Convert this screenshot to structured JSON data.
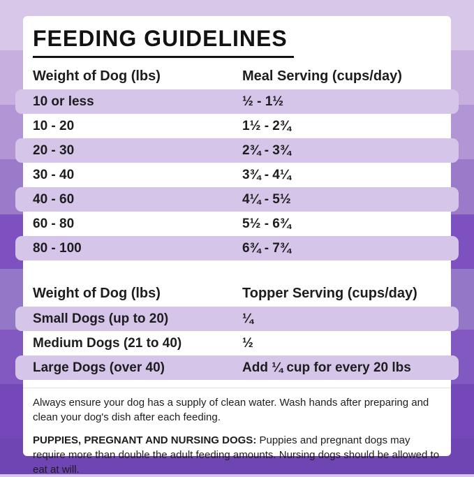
{
  "page": {
    "title": "FEEDING GUIDELINES"
  },
  "meal_table": {
    "col1_header": "Weight of Dog (lbs)",
    "col2_header": "Meal Serving (cups/day)",
    "rows": [
      {
        "weight": "10 or less",
        "serving": "½ - 1½"
      },
      {
        "weight": "10 - 20",
        "serving": "1½ - 2¾"
      },
      {
        "weight": "20 - 30",
        "serving": "2¾ - 3¾"
      },
      {
        "weight": "30 - 40",
        "serving": "3¾ - 4¼"
      },
      {
        "weight": "40 - 60",
        "serving": "4¼ - 5½"
      },
      {
        "weight": "60 - 80",
        "serving": "5½ - 6¾"
      },
      {
        "weight": "80 - 100",
        "serving": "6¾ - 7¾"
      }
    ]
  },
  "topper_table": {
    "col1_header": "Weight of Dog (lbs)",
    "col2_header": "Topper Serving (cups/day)",
    "rows": [
      {
        "weight": "Small Dogs (up to 20)",
        "serving": "¼"
      },
      {
        "weight": "Medium Dogs (21 to 40)",
        "serving": "½"
      },
      {
        "weight": "Large Dogs (over 40)",
        "serving": "Add ¼ cup for every 20 lbs"
      }
    ]
  },
  "notes": {
    "water_note": "Always ensure your dog has a supply of clean water. Wash hands after preparing and clean your dog's dish after each feeding.",
    "puppies_label": "PUPPIES, PREGNANT AND NURSING DOGS:",
    "puppies_note": " Puppies and pregnant dogs may require more than double the adult feeding amounts. Nursing dogs should be allowed to eat at will."
  },
  "colors": {
    "row_highlight": "#d5c5e8",
    "card_background": "#ffffff",
    "text": "#1d1d1f",
    "background_bands": [
      "#d9c7ea",
      "#c7b0e0",
      "#b295d5",
      "#9b7aca",
      "#7d52c0",
      "#9577c7",
      "#8159c0",
      "#7448b8",
      "#6f44b3"
    ]
  }
}
